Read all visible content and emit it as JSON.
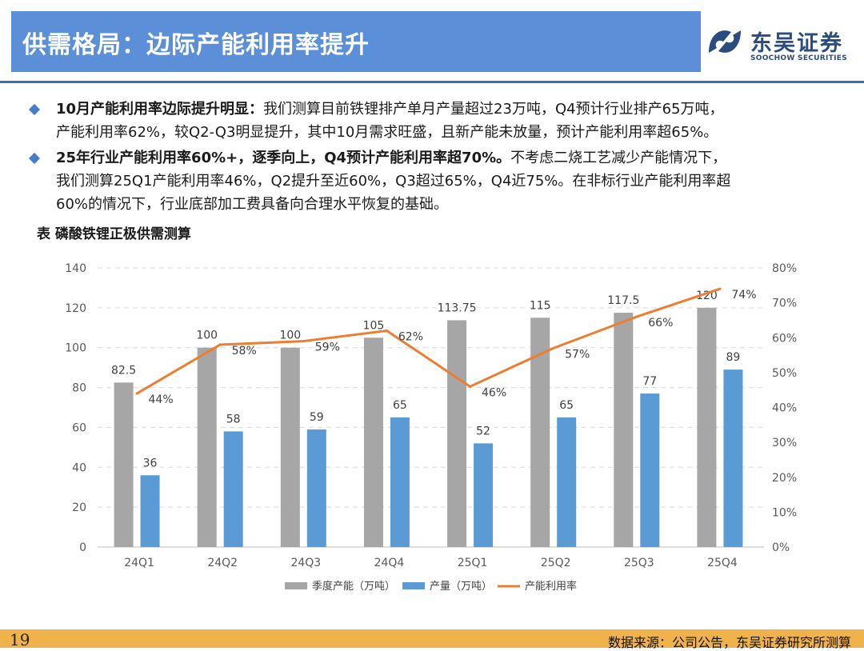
{
  "header": {
    "title": "供需格局：边际产能利用率提升"
  },
  "logo": {
    "name_cn": "东吴证券",
    "name_en": "SOOCHOW SECURITIES"
  },
  "bullets": [
    {
      "bold": "10月产能利用率边际提升明显：",
      "line1": "我们测算目前铁锂排产单月产量超过23万吨，Q4预计行业排产65万吨，",
      "line2": "产能利用率62%，较Q2-Q3明显提升，其中10月需求旺盛，且新产能未放量，预计产能利用率超65%。"
    },
    {
      "bold": "25年行业产能利用率60%+，逐季向上，Q4预计产能利用率超70%。",
      "line1": "不考虑二烧工艺减少产能情况下，",
      "line2": "我们测算25Q1产能利用率46%，Q2提升至近60%，Q3超过65%，Q4近75%。在非标行业产能利用率超",
      "line3": "60%的情况下，行业底部加工费具备向合理水平恢复的基础。"
    }
  ],
  "table_title": "表 磷酸铁锂正极供需测算",
  "chart_data": {
    "type": "bar",
    "categories": [
      "24Q1",
      "24Q2",
      "24Q3",
      "24Q4",
      "25Q1",
      "25Q2",
      "25Q3",
      "25Q4"
    ],
    "series": [
      {
        "name": "季度产能（万吨）",
        "type": "bar",
        "axis": "left",
        "color": "#a6a6a6",
        "values": [
          82.5,
          100,
          100,
          105,
          113.75,
          115,
          117.5,
          120
        ],
        "labels": [
          "82.5",
          "100",
          "100",
          "105",
          "113.75",
          "115",
          "117.5",
          "120"
        ]
      },
      {
        "name": "产量（万吨）",
        "type": "bar",
        "axis": "left",
        "color": "#5b9bd5",
        "values": [
          36,
          58,
          59,
          65,
          52,
          65,
          77,
          89
        ],
        "labels": [
          "36",
          "58",
          "59",
          "65",
          "52",
          "65",
          "77",
          "89"
        ]
      },
      {
        "name": "产能利用率",
        "type": "line",
        "axis": "right",
        "color": "#ed7d31",
        "values": [
          44,
          58,
          59,
          62,
          46,
          57,
          66,
          74
        ],
        "labels": [
          "44%",
          "58%",
          "59%",
          "62%",
          "46%",
          "57%",
          "66%",
          "74%"
        ]
      }
    ],
    "y_left": {
      "min": 0,
      "max": 140,
      "ticks": [
        "0",
        "20",
        "40",
        "60",
        "80",
        "100",
        "120",
        "140"
      ]
    },
    "y_right": {
      "min": 0,
      "max": 80,
      "ticks": [
        "0%",
        "10%",
        "20%",
        "30%",
        "40%",
        "50%",
        "60%",
        "70%",
        "80%"
      ]
    },
    "grid": true,
    "legend_position": "bottom"
  },
  "footer": {
    "page": "19",
    "source": "数据来源：公司公告，东吴证券研究所测算"
  }
}
